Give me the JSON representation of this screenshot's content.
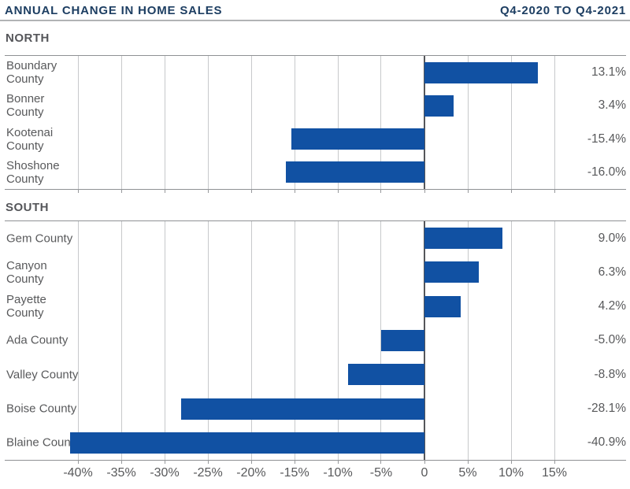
{
  "header": {
    "title": "ANNUAL CHANGE IN HOME SALES",
    "period": "Q4-2020 TO Q4-2021"
  },
  "colors": {
    "bar_blue": "#1151A3",
    "title_navy": "#1D3E62",
    "text_gray": "#58595B",
    "section_gray": "#55565A",
    "gridline_gray": "#C7C9CB",
    "zero_line_gray": "#55565A",
    "panel_border_gray": "#8F9194"
  },
  "chart_data": {
    "type": "bar",
    "orientation": "horizontal",
    "title": "ANNUAL CHANGE IN HOME SALES",
    "subtitle": "Q4-2020 TO Q4-2021",
    "value_unit": "percent",
    "grid": true,
    "grid_range": [
      -40,
      15
    ],
    "grid_step": 5,
    "panels": [
      {
        "label": "NORTH",
        "rows": [
          {
            "category": "Boundary County",
            "value": 13.1,
            "value_label": "13.1%"
          },
          {
            "category": "Bonner County",
            "value": 3.4,
            "value_label": "3.4%"
          },
          {
            "category": "Kootenai County",
            "value": -15.4,
            "value_label": "-15.4%"
          },
          {
            "category": "Shoshone County",
            "value": -16.0,
            "value_label": "-16.0%"
          }
        ]
      },
      {
        "label": "SOUTH",
        "rows": [
          {
            "category": "Gem County",
            "value": 9.0,
            "value_label": "9.0%"
          },
          {
            "category": "Canyon County",
            "value": 6.3,
            "value_label": "6.3%"
          },
          {
            "category": "Payette County",
            "value": 4.2,
            "value_label": "4.2%"
          },
          {
            "category": "Ada County",
            "value": -5.0,
            "value_label": "-5.0%"
          },
          {
            "category": "Valley County",
            "value": -8.8,
            "value_label": "-8.8%"
          },
          {
            "category": "Boise County",
            "value": -28.1,
            "value_label": "-28.1%"
          },
          {
            "category": "Blaine County",
            "value": -40.9,
            "value_label": "-40.9%"
          }
        ]
      }
    ],
    "x_ticks": [
      {
        "value": -40,
        "label": "-40%"
      },
      {
        "value": -35,
        "label": "-35%"
      },
      {
        "value": -30,
        "label": "-30%"
      },
      {
        "value": -25,
        "label": "-25%"
      },
      {
        "value": -20,
        "label": "-20%"
      },
      {
        "value": -15,
        "label": "-15%"
      },
      {
        "value": -10,
        "label": "-10%"
      },
      {
        "value": -5,
        "label": "-5%"
      },
      {
        "value": 0,
        "label": "0"
      },
      {
        "value": 5,
        "label": "5%"
      },
      {
        "value": 10,
        "label": "10%"
      },
      {
        "value": 15,
        "label": "15%"
      }
    ]
  }
}
